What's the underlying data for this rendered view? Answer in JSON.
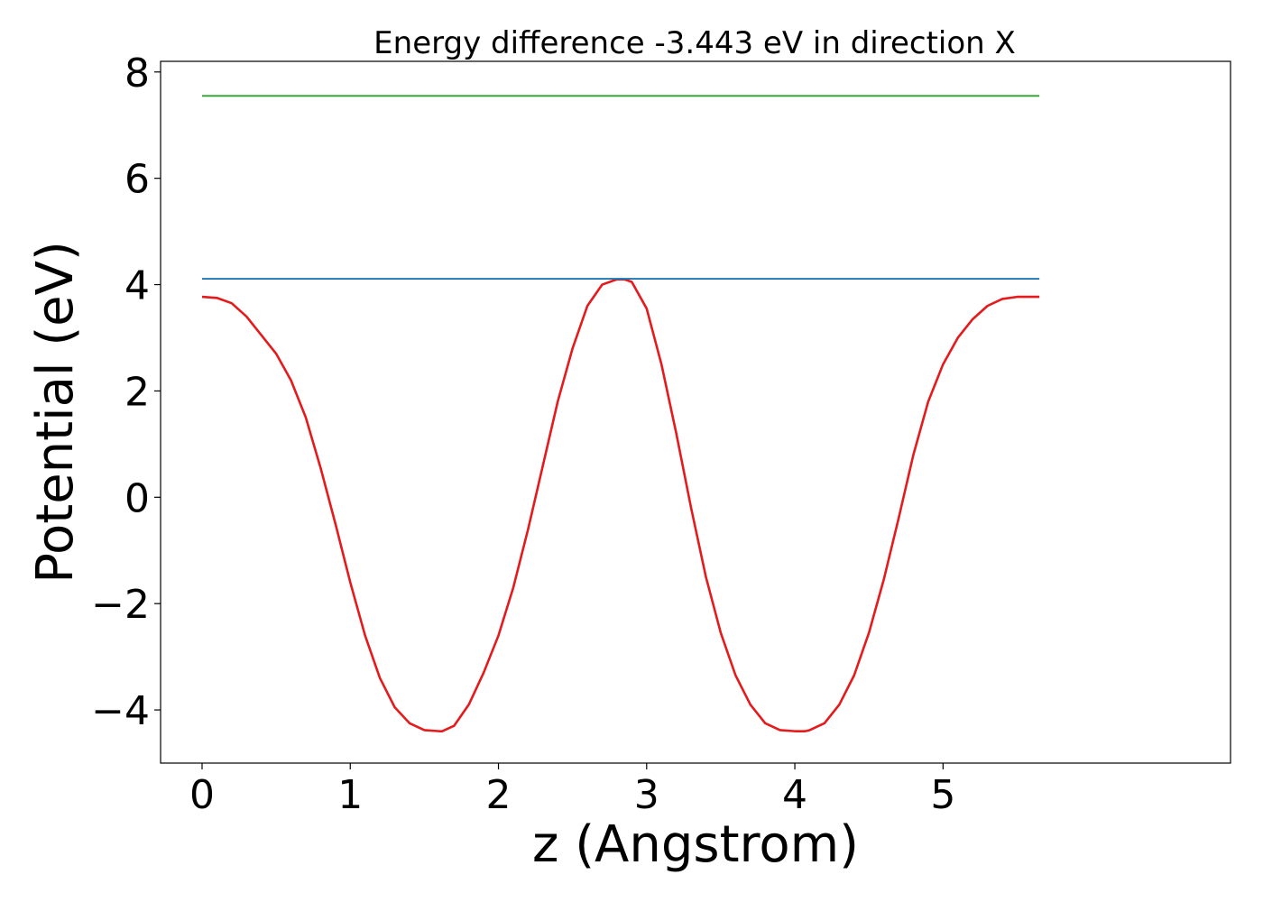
{
  "chart_data": {
    "type": "line",
    "title": "Energy difference -3.443 eV in direction X",
    "xlabel": "z (Angstrom)",
    "ylabel": "Potential (eV)",
    "xlim": [
      -0.28,
      6.94
    ],
    "ylim": [
      -5.0,
      8.2
    ],
    "xticks": [
      0,
      1,
      2,
      3,
      4,
      5
    ],
    "xtick_labels": [
      "0",
      "1",
      "2",
      "3",
      "4",
      "5"
    ],
    "yticks": [
      -4,
      -2,
      0,
      2,
      4,
      6,
      8
    ],
    "ytick_labels": [
      "−4",
      "−2",
      "0",
      "2",
      "4",
      "6",
      "8"
    ],
    "grid": false,
    "series": [
      {
        "color": "#e41a1c",
        "x": [
          0.0,
          0.1,
          0.2,
          0.3,
          0.4,
          0.5,
          0.6,
          0.7,
          0.8,
          0.9,
          1.0,
          1.1,
          1.2,
          1.3,
          1.4,
          1.5,
          1.6,
          1.62,
          1.7,
          1.8,
          1.9,
          2.0,
          2.1,
          2.2,
          2.3,
          2.4,
          2.5,
          2.6,
          2.7,
          2.8,
          2.85,
          2.9,
          3.0,
          3.1,
          3.2,
          3.3,
          3.4,
          3.5,
          3.6,
          3.7,
          3.8,
          3.9,
          4.0,
          4.07,
          4.1,
          4.2,
          4.3,
          4.4,
          4.5,
          4.6,
          4.7,
          4.8,
          4.9,
          5.0,
          5.1,
          5.2,
          5.3,
          5.4,
          5.5,
          5.6,
          5.65
        ],
        "y": [
          3.77,
          3.75,
          3.65,
          3.4,
          3.05,
          2.7,
          2.2,
          1.5,
          0.55,
          -0.5,
          -1.6,
          -2.6,
          -3.4,
          -3.95,
          -4.25,
          -4.38,
          -4.4,
          -4.4,
          -4.3,
          -3.9,
          -3.3,
          -2.6,
          -1.7,
          -0.6,
          0.6,
          1.8,
          2.8,
          3.6,
          4.0,
          4.1,
          4.1,
          4.05,
          3.55,
          2.5,
          1.2,
          -0.2,
          -1.5,
          -2.55,
          -3.35,
          -3.9,
          -4.25,
          -4.38,
          -4.4,
          -4.4,
          -4.38,
          -4.25,
          -3.9,
          -3.35,
          -2.55,
          -1.55,
          -0.4,
          0.8,
          1.8,
          2.5,
          3.0,
          3.35,
          3.6,
          3.73,
          3.77,
          3.77,
          3.77
        ]
      },
      {
        "color": "#1f77b4",
        "x": [
          0.0,
          5.65
        ],
        "y": [
          4.11,
          4.11
        ]
      },
      {
        "color": "#2ca02c",
        "x": [
          0.0,
          5.65
        ],
        "y": [
          7.55,
          7.55
        ]
      }
    ]
  }
}
